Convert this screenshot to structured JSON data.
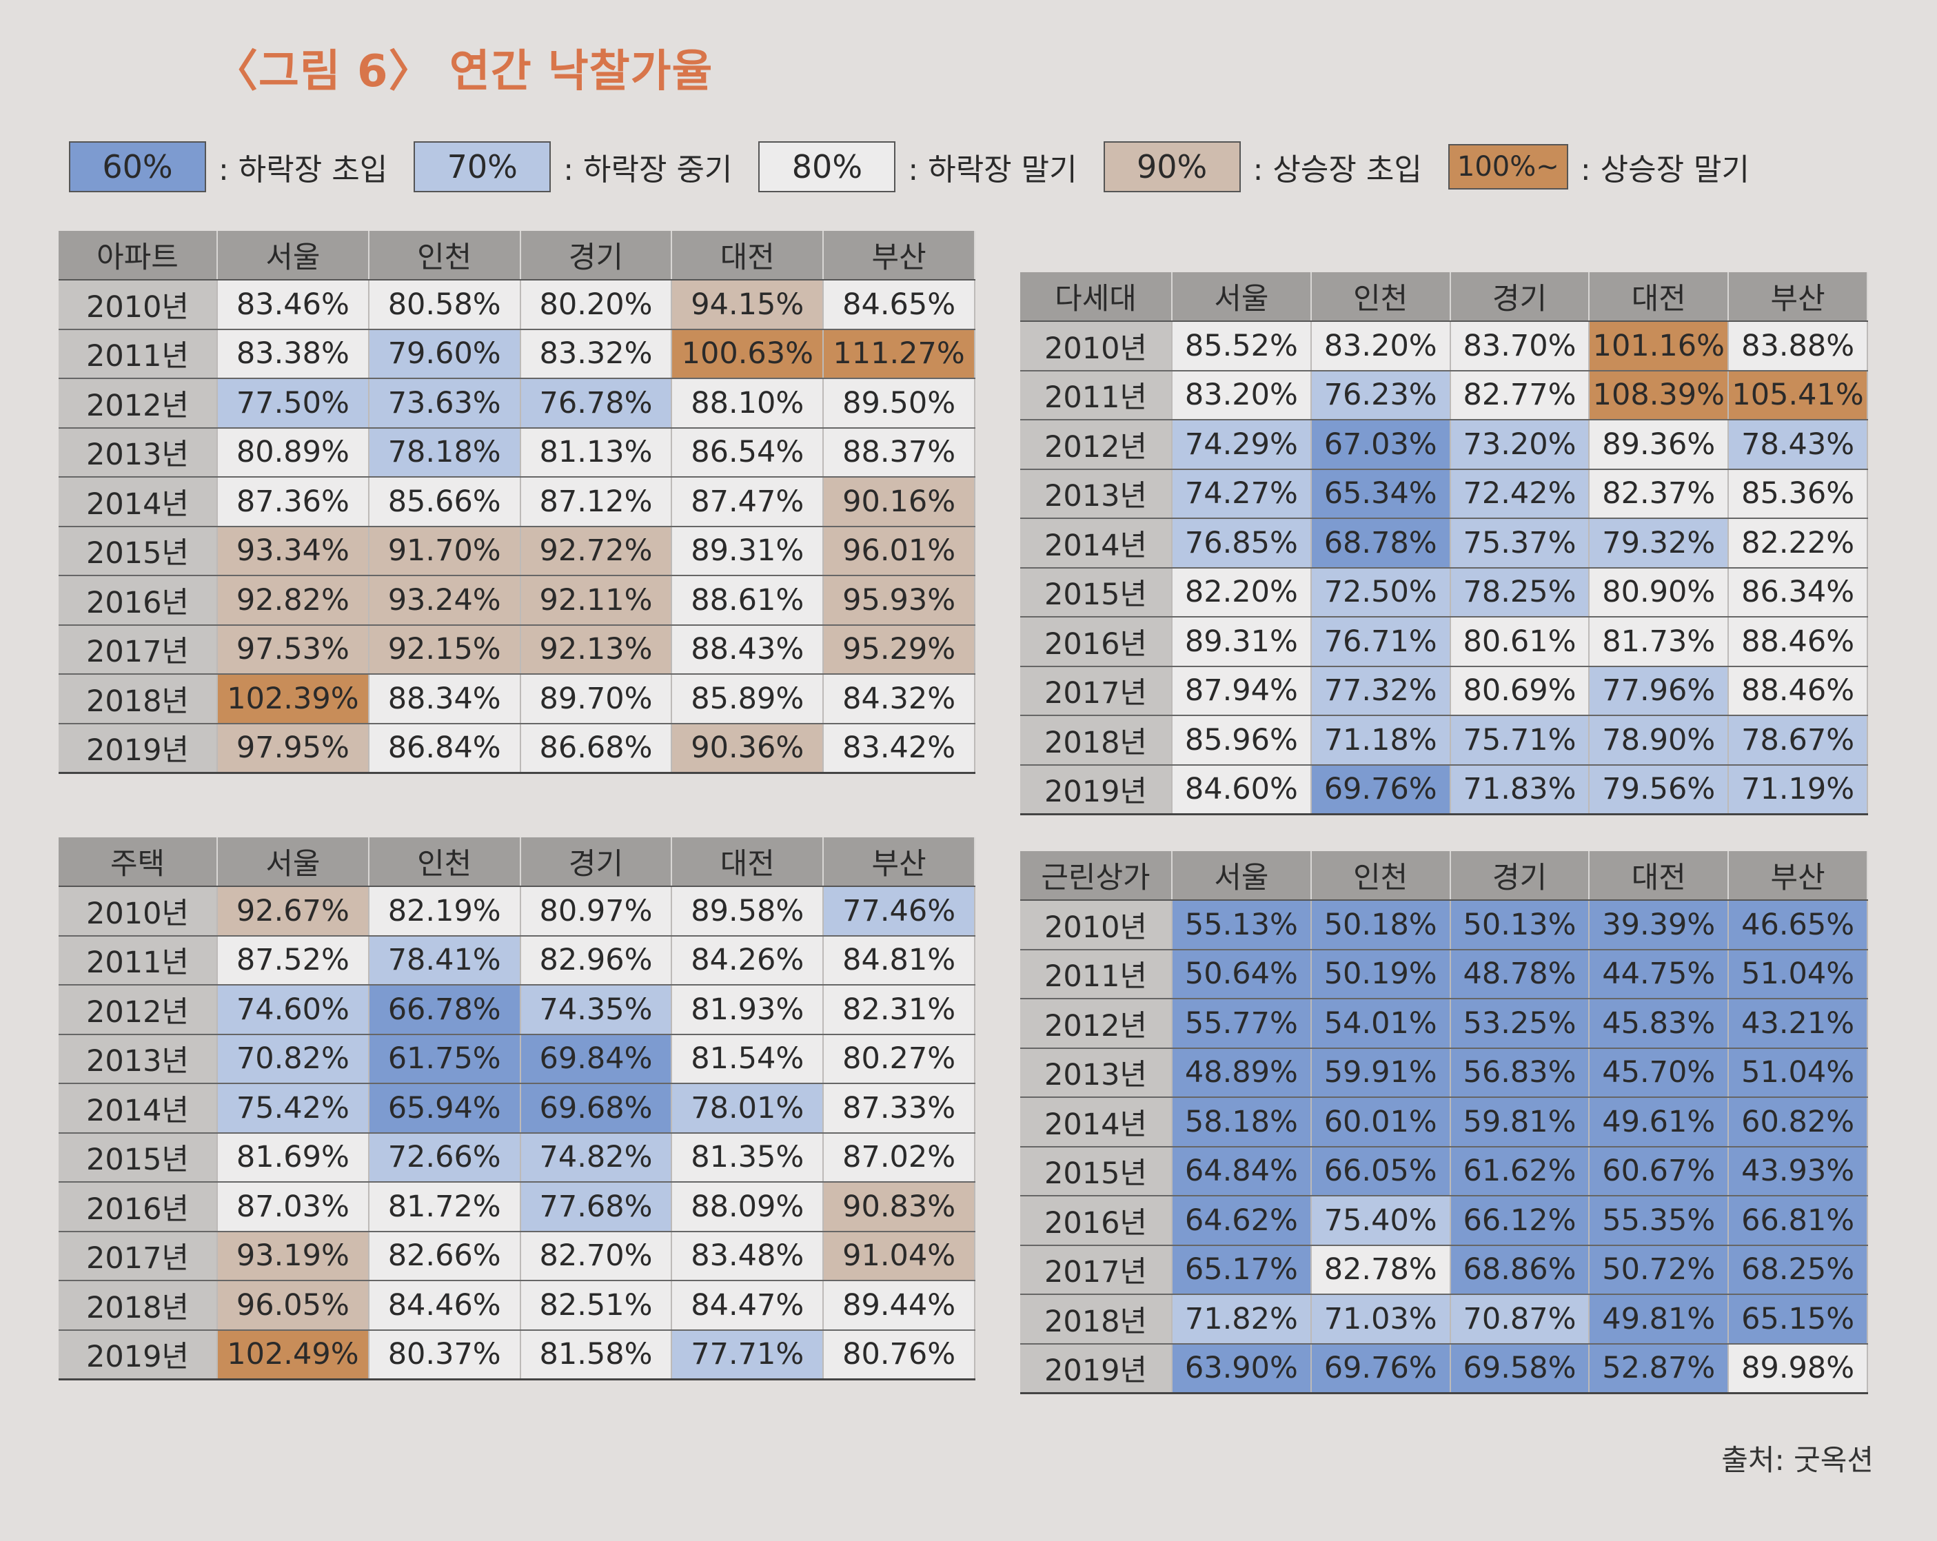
{
  "title": "〈그림 6〉 연간 낙찰가율",
  "legend": [
    {
      "label": "60%",
      "desc": ": 하락장 초입",
      "color": "#7d9bd0"
    },
    {
      "label": "70%",
      "desc": ": 하락장 중기",
      "color": "#b7c7e3"
    },
    {
      "label": "80%",
      "desc": ": 하락장 말기",
      "color": "#edecec"
    },
    {
      "label": "90%",
      "desc": ": 상승장 초입",
      "color": "#cfbcae"
    },
    {
      "label": "100%~",
      "desc": ": 상승장 말기",
      "color": "#c88d59"
    }
  ],
  "tables": [
    {
      "corner": "아파트",
      "regions": [
        "서울",
        "인천",
        "경기",
        "대전",
        "부산"
      ],
      "rows": [
        {
          "year": "2010년",
          "values": [
            "83.46%",
            "80.58%",
            "80.20%",
            "94.15%",
            "84.65%"
          ]
        },
        {
          "year": "2011년",
          "values": [
            "83.38%",
            "79.60%",
            "83.32%",
            "100.63%",
            "111.27%"
          ]
        },
        {
          "year": "2012년",
          "values": [
            "77.50%",
            "73.63%",
            "76.78%",
            "88.10%",
            "89.50%"
          ]
        },
        {
          "year": "2013년",
          "values": [
            "80.89%",
            "78.18%",
            "81.13%",
            "86.54%",
            "88.37%"
          ]
        },
        {
          "year": "2014년",
          "values": [
            "87.36%",
            "85.66%",
            "87.12%",
            "87.47%",
            "90.16%"
          ]
        },
        {
          "year": "2015년",
          "values": [
            "93.34%",
            "91.70%",
            "92.72%",
            "89.31%",
            "96.01%"
          ]
        },
        {
          "year": "2016년",
          "values": [
            "92.82%",
            "93.24%",
            "92.11%",
            "88.61%",
            "95.93%"
          ]
        },
        {
          "year": "2017년",
          "values": [
            "97.53%",
            "92.15%",
            "92.13%",
            "88.43%",
            "95.29%"
          ]
        },
        {
          "year": "2018년",
          "values": [
            "102.39%",
            "88.34%",
            "89.70%",
            "85.89%",
            "84.32%"
          ]
        },
        {
          "year": "2019년",
          "values": [
            "97.95%",
            "86.84%",
            "86.68%",
            "90.36%",
            "83.42%"
          ]
        }
      ]
    },
    {
      "corner": "다세대",
      "regions": [
        "서울",
        "인천",
        "경기",
        "대전",
        "부산"
      ],
      "rows": [
        {
          "year": "2010년",
          "values": [
            "85.52%",
            "83.20%",
            "83.70%",
            "101.16%",
            "83.88%"
          ]
        },
        {
          "year": "2011년",
          "values": [
            "83.20%",
            "76.23%",
            "82.77%",
            "108.39%",
            "105.41%"
          ]
        },
        {
          "year": "2012년",
          "values": [
            "74.29%",
            "67.03%",
            "73.20%",
            "89.36%",
            "78.43%"
          ]
        },
        {
          "year": "2013년",
          "values": [
            "74.27%",
            "65.34%",
            "72.42%",
            "82.37%",
            "85.36%"
          ]
        },
        {
          "year": "2014년",
          "values": [
            "76.85%",
            "68.78%",
            "75.37%",
            "79.32%",
            "82.22%"
          ]
        },
        {
          "year": "2015년",
          "values": [
            "82.20%",
            "72.50%",
            "78.25%",
            "80.90%",
            "86.34%"
          ]
        },
        {
          "year": "2016년",
          "values": [
            "89.31%",
            "76.71%",
            "80.61%",
            "81.73%",
            "88.46%"
          ]
        },
        {
          "year": "2017년",
          "values": [
            "87.94%",
            "77.32%",
            "80.69%",
            "77.96%",
            "88.46%"
          ]
        },
        {
          "year": "2018년",
          "values": [
            "85.96%",
            "71.18%",
            "75.71%",
            "78.90%",
            "78.67%"
          ]
        },
        {
          "year": "2019년",
          "values": [
            "84.60%",
            "69.76%",
            "71.83%",
            "79.56%",
            "71.19%"
          ]
        }
      ]
    },
    {
      "corner": "주택",
      "regions": [
        "서울",
        "인천",
        "경기",
        "대전",
        "부산"
      ],
      "rows": [
        {
          "year": "2010년",
          "values": [
            "92.67%",
            "82.19%",
            "80.97%",
            "89.58%",
            "77.46%"
          ]
        },
        {
          "year": "2011년",
          "values": [
            "87.52%",
            "78.41%",
            "82.96%",
            "84.26%",
            "84.81%"
          ]
        },
        {
          "year": "2012년",
          "values": [
            "74.60%",
            "66.78%",
            "74.35%",
            "81.93%",
            "82.31%"
          ]
        },
        {
          "year": "2013년",
          "values": [
            "70.82%",
            "61.75%",
            "69.84%",
            "81.54%",
            "80.27%"
          ]
        },
        {
          "year": "2014년",
          "values": [
            "75.42%",
            "65.94%",
            "69.68%",
            "78.01%",
            "87.33%"
          ]
        },
        {
          "year": "2015년",
          "values": [
            "81.69%",
            "72.66%",
            "74.82%",
            "81.35%",
            "87.02%"
          ]
        },
        {
          "year": "2016년",
          "values": [
            "87.03%",
            "81.72%",
            "77.68%",
            "88.09%",
            "90.83%"
          ]
        },
        {
          "year": "2017년",
          "values": [
            "93.19%",
            "82.66%",
            "82.70%",
            "83.48%",
            "91.04%"
          ]
        },
        {
          "year": "2018년",
          "values": [
            "96.05%",
            "84.46%",
            "82.51%",
            "84.47%",
            "89.44%"
          ]
        },
        {
          "year": "2019년",
          "values": [
            "102.49%",
            "80.37%",
            "81.58%",
            "77.71%",
            "80.76%"
          ]
        }
      ]
    },
    {
      "corner": "근린상가",
      "regions": [
        "서울",
        "인천",
        "경기",
        "대전",
        "부산"
      ],
      "rows": [
        {
          "year": "2010년",
          "values": [
            "55.13%",
            "50.18%",
            "50.13%",
            "39.39%",
            "46.65%"
          ]
        },
        {
          "year": "2011년",
          "values": [
            "50.64%",
            "50.19%",
            "48.78%",
            "44.75%",
            "51.04%"
          ]
        },
        {
          "year": "2012년",
          "values": [
            "55.77%",
            "54.01%",
            "53.25%",
            "45.83%",
            "43.21%"
          ]
        },
        {
          "year": "2013년",
          "values": [
            "48.89%",
            "59.91%",
            "56.83%",
            "45.70%",
            "51.04%"
          ]
        },
        {
          "year": "2014년",
          "values": [
            "58.18%",
            "60.01%",
            "59.81%",
            "49.61%",
            "60.82%"
          ]
        },
        {
          "year": "2015년",
          "values": [
            "64.84%",
            "66.05%",
            "61.62%",
            "60.67%",
            "43.93%"
          ]
        },
        {
          "year": "2016년",
          "values": [
            "64.62%",
            "75.40%",
            "66.12%",
            "55.35%",
            "66.81%"
          ]
        },
        {
          "year": "2017년",
          "values": [
            "65.17%",
            "82.78%",
            "68.86%",
            "50.72%",
            "68.25%"
          ]
        },
        {
          "year": "2018년",
          "values": [
            "71.82%",
            "71.03%",
            "70.87%",
            "49.81%",
            "65.15%"
          ]
        },
        {
          "year": "2019년",
          "values": [
            "63.90%",
            "69.76%",
            "69.58%",
            "52.87%",
            "89.98%"
          ]
        }
      ]
    }
  ],
  "source": "출처: 굿옥션"
}
